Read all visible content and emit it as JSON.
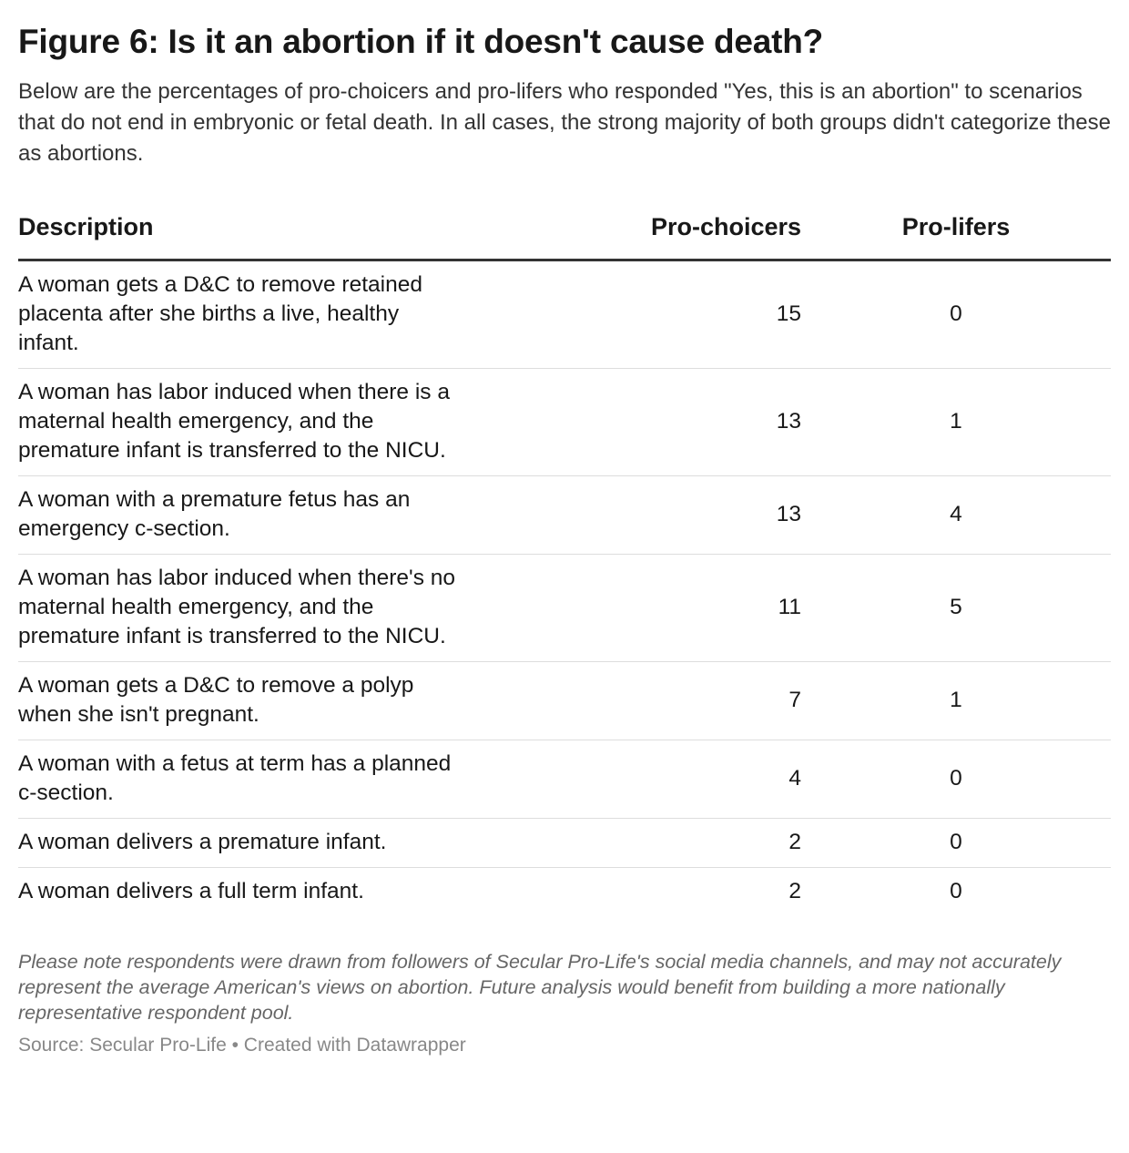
{
  "title": "Figure 6: Is it an abortion if it doesn't cause death?",
  "subtitle": "Below are the percentages of pro-choicers and pro-lifers who responded \"Yes, this is an abortion\" to scenarios that do not end in embryonic or fetal death. In all cases, the strong majority of both groups didn't categorize these as abortions.",
  "chart_data": {
    "type": "table",
    "columns": [
      "Description",
      "Pro-choicers",
      "Pro-lifers"
    ],
    "rows": [
      {
        "description": "A woman gets a D&C to remove retained placenta after she births a live, healthy infant.",
        "pro_choicers": 15,
        "pro_lifers": 0
      },
      {
        "description": "A woman has labor induced when there is a maternal health emergency, and the premature infant is transferred to the NICU.",
        "pro_choicers": 13,
        "pro_lifers": 1
      },
      {
        "description": "A woman with a premature fetus has an emergency c-section.",
        "pro_choicers": 13,
        "pro_lifers": 4
      },
      {
        "description": "A woman has labor induced when there's no maternal health emergency, and the premature infant is transferred to the NICU.",
        "pro_choicers": 11,
        "pro_lifers": 5
      },
      {
        "description": "A woman gets a D&C to remove a polyp when she isn't pregnant.",
        "pro_choicers": 7,
        "pro_lifers": 1
      },
      {
        "description": "A woman with a fetus at term has a planned c-section.",
        "pro_choicers": 4,
        "pro_lifers": 0
      },
      {
        "description": "A woman delivers a premature infant.",
        "pro_choicers": 2,
        "pro_lifers": 0
      },
      {
        "description": "A woman delivers a full term infant.",
        "pro_choicers": 2,
        "pro_lifers": 0
      }
    ]
  },
  "notes": "Please note respondents were drawn from followers of Secular Pro-Life's social media channels, and may not accurately represent the average American's views on abortion. Future analysis would benefit from building a more nationally representative respondent pool.",
  "source": "Source: Secular Pro-Life • Created with Datawrapper"
}
